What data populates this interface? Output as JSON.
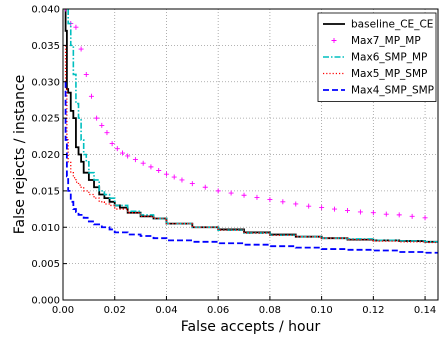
{
  "chart_data": {
    "type": "line",
    "xlabel": "False accepts / hour",
    "ylabel": "False rejects / instance",
    "xlim": [
      0.0,
      0.145
    ],
    "ylim": [
      0.0,
      0.04
    ],
    "xticks": [
      "0.00",
      "0.02",
      "0.04",
      "0.06",
      "0.08",
      "0.10",
      "0.12",
      "0.14"
    ],
    "xtick_values": [
      0.0,
      0.02,
      0.04,
      0.06,
      0.08,
      0.1,
      0.12,
      0.14
    ],
    "yticks": [
      "0.000",
      "0.005",
      "0.010",
      "0.015",
      "0.020",
      "0.025",
      "0.030",
      "0.035",
      "0.040"
    ],
    "ytick_values": [
      0.0,
      0.005,
      0.01,
      0.015,
      0.02,
      0.025,
      0.03,
      0.035,
      0.04
    ],
    "grid": true,
    "legend_position": "top-right",
    "series": [
      {
        "name": "baseline_CE_CE",
        "color": "#000000",
        "style": "solid",
        "x": [
          0.001,
          0.0015,
          0.002,
          0.003,
          0.004,
          0.005,
          0.006,
          0.007,
          0.008,
          0.01,
          0.012,
          0.014,
          0.016,
          0.018,
          0.02,
          0.022,
          0.025,
          0.03,
          0.035,
          0.04,
          0.05,
          0.06,
          0.07,
          0.08,
          0.09,
          0.1,
          0.11,
          0.12,
          0.13,
          0.14,
          0.145
        ],
        "y": [
          0.04,
          0.037,
          0.029,
          0.0285,
          0.026,
          0.025,
          0.021,
          0.02,
          0.019,
          0.0175,
          0.0165,
          0.0155,
          0.0145,
          0.014,
          0.0135,
          0.013,
          0.0127,
          0.012,
          0.0115,
          0.0112,
          0.0105,
          0.01,
          0.0097,
          0.0093,
          0.009,
          0.0087,
          0.0085,
          0.0083,
          0.0082,
          0.0081,
          0.008
        ]
      },
      {
        "name": "Max7_MP_MP",
        "color": "#ff00ff",
        "style": "plus",
        "x": [
          0.001,
          0.003,
          0.005,
          0.007,
          0.009,
          0.011,
          0.013,
          0.015,
          0.017,
          0.019,
          0.021,
          0.023,
          0.025,
          0.028,
          0.031,
          0.034,
          0.037,
          0.04,
          0.043,
          0.046,
          0.05,
          0.055,
          0.06,
          0.065,
          0.07,
          0.075,
          0.08,
          0.085,
          0.09,
          0.095,
          0.1,
          0.105,
          0.11,
          0.115,
          0.12,
          0.125,
          0.13,
          0.135,
          0.14
        ],
        "y": [
          0.04,
          0.038,
          0.0375,
          0.0345,
          0.031,
          0.028,
          0.025,
          0.024,
          0.023,
          0.0215,
          0.0208,
          0.0202,
          0.0198,
          0.0193,
          0.0188,
          0.0183,
          0.0178,
          0.0173,
          0.0169,
          0.0165,
          0.016,
          0.0155,
          0.015,
          0.0147,
          0.0144,
          0.0141,
          0.0138,
          0.0135,
          0.0132,
          0.0129,
          0.0127,
          0.0125,
          0.0123,
          0.0121,
          0.012,
          0.0118,
          0.0117,
          0.0115,
          0.0113
        ]
      },
      {
        "name": "Max6_SMP_MP",
        "color": "#00bfbf",
        "style": "dashdot",
        "x": [
          0.002,
          0.003,
          0.004,
          0.005,
          0.006,
          0.007,
          0.008,
          0.009,
          0.01,
          0.012,
          0.014,
          0.016,
          0.018,
          0.02,
          0.025,
          0.03,
          0.035,
          0.04,
          0.05,
          0.06,
          0.07,
          0.08,
          0.09,
          0.1,
          0.11,
          0.12,
          0.13,
          0.14,
          0.145
        ],
        "y": [
          0.04,
          0.038,
          0.035,
          0.031,
          0.027,
          0.025,
          0.022,
          0.02,
          0.019,
          0.0175,
          0.0165,
          0.015,
          0.0145,
          0.014,
          0.013,
          0.0122,
          0.0117,
          0.0112,
          0.0105,
          0.01,
          0.0096,
          0.0092,
          0.0089,
          0.0087,
          0.0085,
          0.0084,
          0.0082,
          0.0081,
          0.008
        ]
      },
      {
        "name": "Max5_MP_SMP",
        "color": "#ff0000",
        "style": "dotted",
        "x": [
          0.001,
          0.0015,
          0.002,
          0.003,
          0.004,
          0.005,
          0.006,
          0.007,
          0.008,
          0.01,
          0.012,
          0.014,
          0.016,
          0.018,
          0.02,
          0.025,
          0.03,
          0.035,
          0.04,
          0.05,
          0.06,
          0.07,
          0.08,
          0.09,
          0.1,
          0.11,
          0.12,
          0.13,
          0.14,
          0.145
        ],
        "y": [
          0.035,
          0.029,
          0.022,
          0.019,
          0.0175,
          0.0168,
          0.0162,
          0.0158,
          0.0155,
          0.015,
          0.0145,
          0.014,
          0.0135,
          0.0132,
          0.013,
          0.0125,
          0.012,
          0.0115,
          0.0112,
          0.0105,
          0.01,
          0.0096,
          0.0092,
          0.0089,
          0.0087,
          0.0085,
          0.0083,
          0.0081,
          0.008,
          0.0079
        ]
      },
      {
        "name": "Max4_SMP_SMP",
        "color": "#0000ff",
        "style": "dashed",
        "x": [
          0.001,
          0.0015,
          0.002,
          0.003,
          0.004,
          0.005,
          0.006,
          0.008,
          0.01,
          0.012,
          0.015,
          0.018,
          0.02,
          0.025,
          0.03,
          0.035,
          0.04,
          0.05,
          0.06,
          0.07,
          0.08,
          0.09,
          0.1,
          0.11,
          0.12,
          0.13,
          0.14,
          0.145
        ],
        "y": [
          0.03,
          0.022,
          0.017,
          0.015,
          0.0135,
          0.0125,
          0.0121,
          0.0117,
          0.0113,
          0.0108,
          0.0104,
          0.01,
          0.0097,
          0.0093,
          0.009,
          0.0088,
          0.0085,
          0.0082,
          0.008,
          0.0078,
          0.0076,
          0.0074,
          0.0072,
          0.007,
          0.0069,
          0.0068,
          0.0066,
          0.0065
        ]
      }
    ]
  }
}
